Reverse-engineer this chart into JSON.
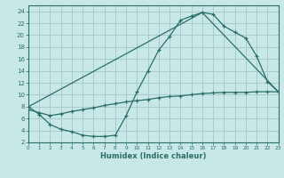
{
  "xlabel": "Humidex (Indice chaleur)",
  "bg_color": "#c8e8e8",
  "grid_color": "#a8cccc",
  "line_color": "#2a6e68",
  "xlim": [
    0,
    23
  ],
  "ylim": [
    2,
    25
  ],
  "yticks": [
    2,
    4,
    6,
    8,
    10,
    12,
    14,
    16,
    18,
    20,
    22,
    24
  ],
  "xticks": [
    0,
    1,
    2,
    3,
    4,
    5,
    6,
    7,
    8,
    9,
    10,
    11,
    12,
    13,
    14,
    15,
    16,
    17,
    18,
    19,
    20,
    21,
    22,
    23
  ],
  "curve1_x": [
    0,
    1,
    2,
    3,
    4,
    5,
    6,
    7,
    8,
    9,
    10,
    11,
    12,
    13,
    14,
    15,
    16,
    17,
    18,
    19,
    20,
    21,
    22,
    23
  ],
  "curve1_y": [
    8.0,
    6.7,
    5.0,
    4.2,
    3.8,
    3.2,
    3.0,
    3.0,
    3.2,
    6.5,
    10.5,
    14.0,
    17.5,
    19.8,
    22.5,
    23.2,
    23.8,
    23.5,
    21.5,
    20.5,
    19.5,
    16.5,
    12.2,
    10.5
  ],
  "curve2_x": [
    0,
    16,
    23
  ],
  "curve2_y": [
    8.0,
    23.8,
    10.5
  ],
  "curve3_x": [
    0,
    1,
    2,
    3,
    4,
    5,
    6,
    7,
    8,
    9,
    10,
    11,
    12,
    13,
    14,
    15,
    16,
    17,
    18,
    19,
    20,
    21,
    22,
    23
  ],
  "curve3_y": [
    7.5,
    7.0,
    6.5,
    6.8,
    7.2,
    7.5,
    7.8,
    8.2,
    8.5,
    8.8,
    9.0,
    9.2,
    9.5,
    9.7,
    9.8,
    10.0,
    10.2,
    10.3,
    10.4,
    10.4,
    10.4,
    10.5,
    10.5,
    10.5
  ]
}
